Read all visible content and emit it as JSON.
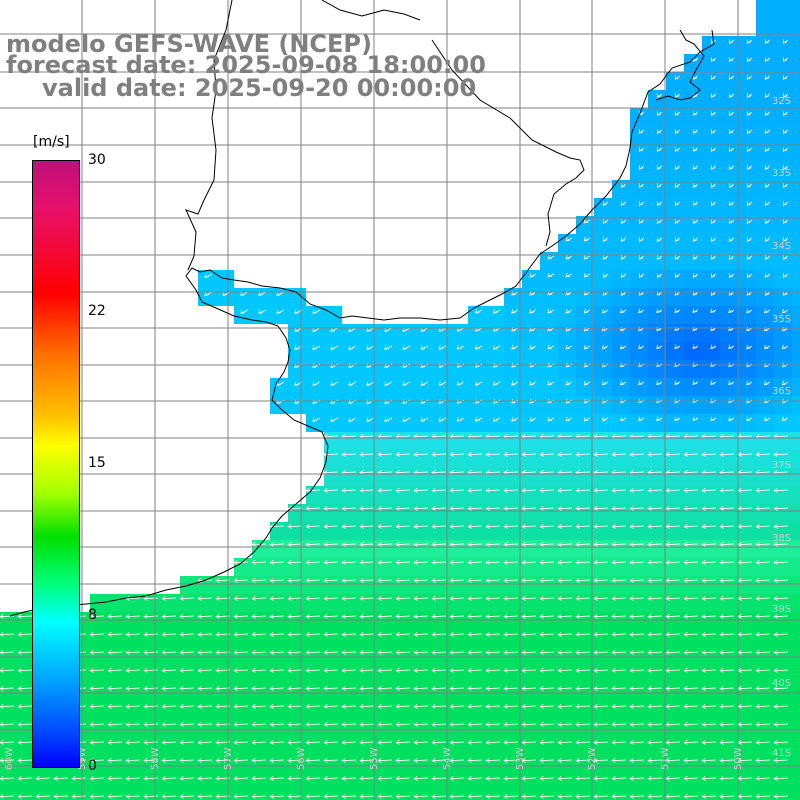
{
  "title": {
    "line1": "modelo GEFS-WAVE (NCEP)",
    "line2": "forecast date: 2025-09-08 18:00:00",
    "line3": "valid date: 2025-09-20 00:00:00"
  },
  "colorbar": {
    "unit": "[m/s]",
    "ticks": [
      "30",
      "22",
      "15",
      "8",
      "0"
    ],
    "colors": [
      "#0000ff",
      "#0080ff",
      "#00ffff",
      "#00ff80",
      "#00e000",
      "#a0ff00",
      "#ffff00",
      "#ff7000",
      "#ff0000",
      "#c0107a"
    ]
  },
  "lat_labels": [
    "32S",
    "33S",
    "34S",
    "35S",
    "36S",
    "37S",
    "38S",
    "39S",
    "40S",
    "41S"
  ],
  "lon_labels": [
    "60W",
    "59W",
    "58W",
    "57W",
    "56W",
    "55W",
    "54W",
    "53W",
    "52W",
    "51W",
    "50W"
  ],
  "field_colors": {
    "ocean_far": "#00c8ff",
    "ocean_mid": "#20e0f0",
    "ocean_calm": "#0060ff",
    "ocean_strong": "#00e060",
    "land": "#ffffff",
    "coast": "#000000",
    "grid": "#808080",
    "arrows": "#ffffff"
  }
}
